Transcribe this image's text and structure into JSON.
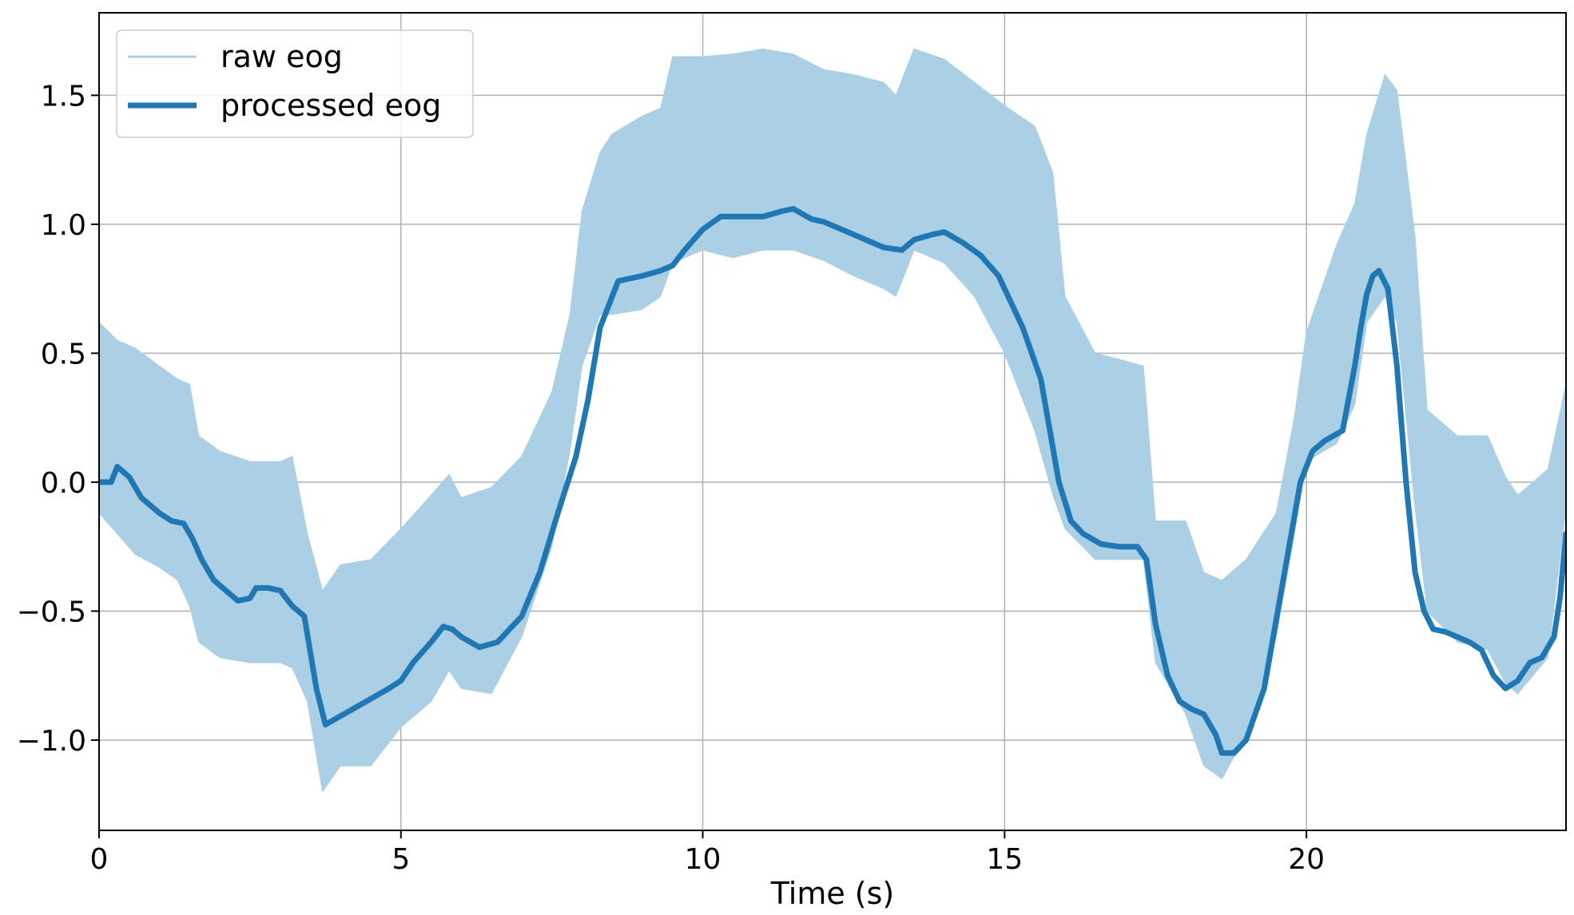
{
  "chart_data": {
    "type": "line",
    "title": "",
    "xlabel": "Time (s)",
    "ylabel": "",
    "xlim": [
      0,
      24.3
    ],
    "ylim": [
      -1.35,
      1.82
    ],
    "x_ticks": [
      0,
      5,
      10,
      15,
      20
    ],
    "y_ticks": [
      -1.0,
      -0.5,
      0.0,
      0.5,
      1.0,
      1.5
    ],
    "x_tick_labels": [
      "0",
      "5",
      "10",
      "15",
      "20"
    ],
    "y_tick_labels": [
      "−1.0",
      "−0.5",
      "0.0",
      "0.5",
      "1.0",
      "1.5"
    ],
    "grid": true,
    "legend_position": "top-left",
    "colors": {
      "raw": "#abcfe5",
      "processed": "#1f77b4",
      "grid": "#b0b0b0",
      "axes": "#000000"
    },
    "series": [
      {
        "name": "raw eog",
        "style": "band",
        "x": [
          0,
          0.3,
          0.6,
          1.0,
          1.3,
          1.5,
          1.65,
          2.0,
          2.5,
          3.0,
          3.2,
          3.45,
          3.7,
          4.0,
          4.5,
          5.0,
          5.5,
          5.8,
          6.0,
          6.5,
          7.0,
          7.5,
          7.8,
          8.0,
          8.3,
          8.5,
          9.0,
          9.3,
          9.5,
          10.0,
          10.5,
          11.0,
          11.5,
          12.0,
          12.5,
          13.0,
          13.2,
          13.5,
          14.0,
          14.5,
          15.0,
          15.5,
          15.8,
          16.0,
          16.5,
          17.0,
          17.3,
          17.5,
          18.0,
          18.3,
          18.6,
          19.0,
          19.5,
          19.8,
          20.0,
          20.5,
          20.8,
          21.0,
          21.3,
          21.5,
          21.8,
          22.0,
          22.5,
          23.0,
          23.3,
          23.5,
          24.0,
          24.3
        ],
        "upper": [
          0.62,
          0.55,
          0.52,
          0.45,
          0.4,
          0.38,
          0.18,
          0.12,
          0.08,
          0.08,
          0.1,
          -0.2,
          -0.42,
          -0.32,
          -0.3,
          -0.18,
          -0.05,
          0.03,
          -0.06,
          -0.02,
          0.1,
          0.35,
          0.65,
          1.05,
          1.28,
          1.35,
          1.42,
          1.45,
          1.65,
          1.65,
          1.66,
          1.68,
          1.66,
          1.6,
          1.58,
          1.55,
          1.5,
          1.68,
          1.64,
          1.55,
          1.46,
          1.38,
          1.2,
          0.72,
          0.5,
          0.47,
          0.45,
          -0.15,
          -0.15,
          -0.35,
          -0.38,
          -0.3,
          -0.12,
          0.25,
          0.58,
          0.92,
          1.08,
          1.35,
          1.58,
          1.52,
          0.95,
          0.28,
          0.18,
          0.18,
          0.02,
          -0.05,
          0.05,
          0.38
        ],
        "lower": [
          -0.12,
          -0.2,
          -0.28,
          -0.33,
          -0.38,
          -0.48,
          -0.62,
          -0.68,
          -0.7,
          -0.7,
          -0.72,
          -0.85,
          -1.2,
          -1.1,
          -1.1,
          -0.95,
          -0.85,
          -0.73,
          -0.8,
          -0.82,
          -0.6,
          -0.25,
          0.12,
          0.45,
          0.65,
          0.65,
          0.67,
          0.72,
          0.85,
          0.9,
          0.87,
          0.9,
          0.9,
          0.86,
          0.8,
          0.75,
          0.72,
          0.9,
          0.85,
          0.72,
          0.5,
          0.2,
          -0.05,
          -0.18,
          -0.3,
          -0.3,
          -0.3,
          -0.7,
          -0.9,
          -1.1,
          -1.15,
          -0.98,
          -0.6,
          -0.2,
          0.08,
          0.15,
          0.3,
          0.62,
          0.72,
          0.62,
          -0.1,
          -0.5,
          -0.62,
          -0.65,
          -0.78,
          -0.82,
          -0.68,
          -0.1
        ]
      },
      {
        "name": "processed eog",
        "style": "line",
        "x": [
          0,
          0.2,
          0.3,
          0.5,
          0.7,
          1.0,
          1.2,
          1.4,
          1.55,
          1.7,
          1.9,
          2.1,
          2.3,
          2.5,
          2.6,
          2.8,
          3.0,
          3.2,
          3.4,
          3.6,
          3.75,
          3.9,
          4.2,
          4.5,
          4.8,
          5.0,
          5.2,
          5.5,
          5.7,
          5.85,
          6.0,
          6.3,
          6.6,
          7.0,
          7.3,
          7.6,
          7.9,
          8.1,
          8.3,
          8.6,
          9.0,
          9.3,
          9.5,
          9.7,
          10.0,
          10.3,
          10.6,
          11.0,
          11.3,
          11.5,
          11.8,
          12.0,
          12.3,
          12.6,
          13.0,
          13.3,
          13.5,
          13.8,
          14.0,
          14.3,
          14.6,
          14.9,
          15.1,
          15.3,
          15.6,
          15.9,
          16.1,
          16.3,
          16.6,
          16.9,
          17.2,
          17.35,
          17.5,
          17.7,
          17.9,
          18.1,
          18.3,
          18.5,
          18.6,
          18.8,
          19.0,
          19.3,
          19.6,
          19.9,
          20.1,
          20.3,
          20.6,
          20.8,
          20.9,
          21.0,
          21.1,
          21.2,
          21.35,
          21.5,
          21.65,
          21.8,
          21.95,
          22.1,
          22.3,
          22.5,
          22.7,
          22.9,
          23.1,
          23.3,
          23.5,
          23.7,
          23.9,
          24.1,
          24.2,
          24.3
        ],
        "values": [
          0.0,
          0.0,
          0.06,
          0.02,
          -0.06,
          -0.12,
          -0.15,
          -0.16,
          -0.22,
          -0.3,
          -0.38,
          -0.42,
          -0.46,
          -0.45,
          -0.41,
          -0.41,
          -0.42,
          -0.48,
          -0.52,
          -0.8,
          -0.94,
          -0.92,
          -0.88,
          -0.84,
          -0.8,
          -0.77,
          -0.7,
          -0.62,
          -0.56,
          -0.57,
          -0.6,
          -0.64,
          -0.62,
          -0.52,
          -0.35,
          -0.12,
          0.1,
          0.32,
          0.6,
          0.78,
          0.8,
          0.82,
          0.84,
          0.9,
          0.98,
          1.03,
          1.03,
          1.03,
          1.05,
          1.06,
          1.02,
          1.01,
          0.98,
          0.95,
          0.91,
          0.9,
          0.94,
          0.96,
          0.97,
          0.93,
          0.88,
          0.8,
          0.7,
          0.6,
          0.4,
          0.0,
          -0.15,
          -0.2,
          -0.24,
          -0.25,
          -0.25,
          -0.3,
          -0.55,
          -0.75,
          -0.85,
          -0.88,
          -0.9,
          -0.98,
          -1.05,
          -1.05,
          -1.0,
          -0.8,
          -0.4,
          0.0,
          0.12,
          0.16,
          0.2,
          0.45,
          0.6,
          0.73,
          0.8,
          0.82,
          0.75,
          0.45,
          0.0,
          -0.35,
          -0.5,
          -0.57,
          -0.58,
          -0.6,
          -0.62,
          -0.65,
          -0.75,
          -0.8,
          -0.77,
          -0.7,
          -0.68,
          -0.6,
          -0.45,
          -0.2
        ]
      }
    ]
  }
}
